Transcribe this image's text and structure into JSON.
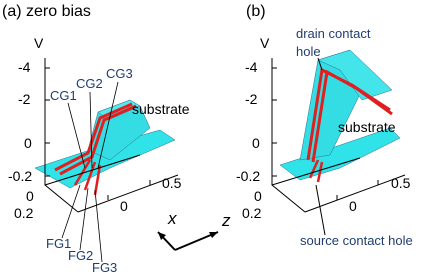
{
  "panels": [
    {
      "title": "(a) zero bias",
      "axis_label": "V",
      "v_ticks": [
        "-4",
        "-2",
        "0",
        "-0.2"
      ],
      "x_ticks": [
        "0",
        "0.2"
      ],
      "z_ticks": [
        "0",
        "0.5"
      ],
      "annotations": [
        "substrate",
        "CG1",
        "CG2",
        "CG3",
        "FG1",
        "FG2",
        "FG3"
      ]
    },
    {
      "title": "(b)",
      "axis_label": "V",
      "v_ticks": [
        "-4",
        "-2",
        "0",
        "-0.2"
      ],
      "x_ticks": [
        "0",
        "0.2"
      ],
      "z_ticks": [
        "0",
        "0.5"
      ],
      "annotations": [
        "drain contact",
        "hole",
        "substrate",
        "source contact hole"
      ]
    }
  ],
  "direction_labels": [
    "x",
    "z"
  ]
}
